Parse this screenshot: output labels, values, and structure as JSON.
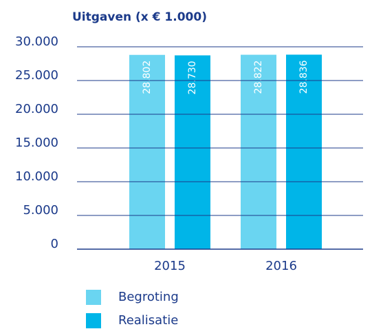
{
  "chart_data": {
    "type": "bar",
    "title": "Uitgaven (x € 1.000)",
    "categories": [
      "2015",
      "2016"
    ],
    "series": [
      {
        "name": "Begroting",
        "color": "#6ad5f1",
        "values": [
          28802,
          28822
        ],
        "value_labels": [
          "28.802",
          "28.822"
        ]
      },
      {
        "name": "Realisatie",
        "color": "#00b5e8",
        "values": [
          28730,
          28836
        ],
        "value_labels": [
          "28.730",
          "28.836"
        ]
      }
    ],
    "ylim": [
      0,
      30000
    ],
    "yticks": [
      0,
      {
        "value": 5000,
        "label": "5.000"
      },
      {
        "value": 10000,
        "label": "10.000"
      },
      {
        "value": 15000,
        "label": "15.000"
      },
      {
        "value": 20000,
        "label": "20.000"
      },
      {
        "value": 25000,
        "label": "25.000"
      },
      {
        "value": 30000,
        "label": "30.000"
      }
    ],
    "grid": true
  }
}
